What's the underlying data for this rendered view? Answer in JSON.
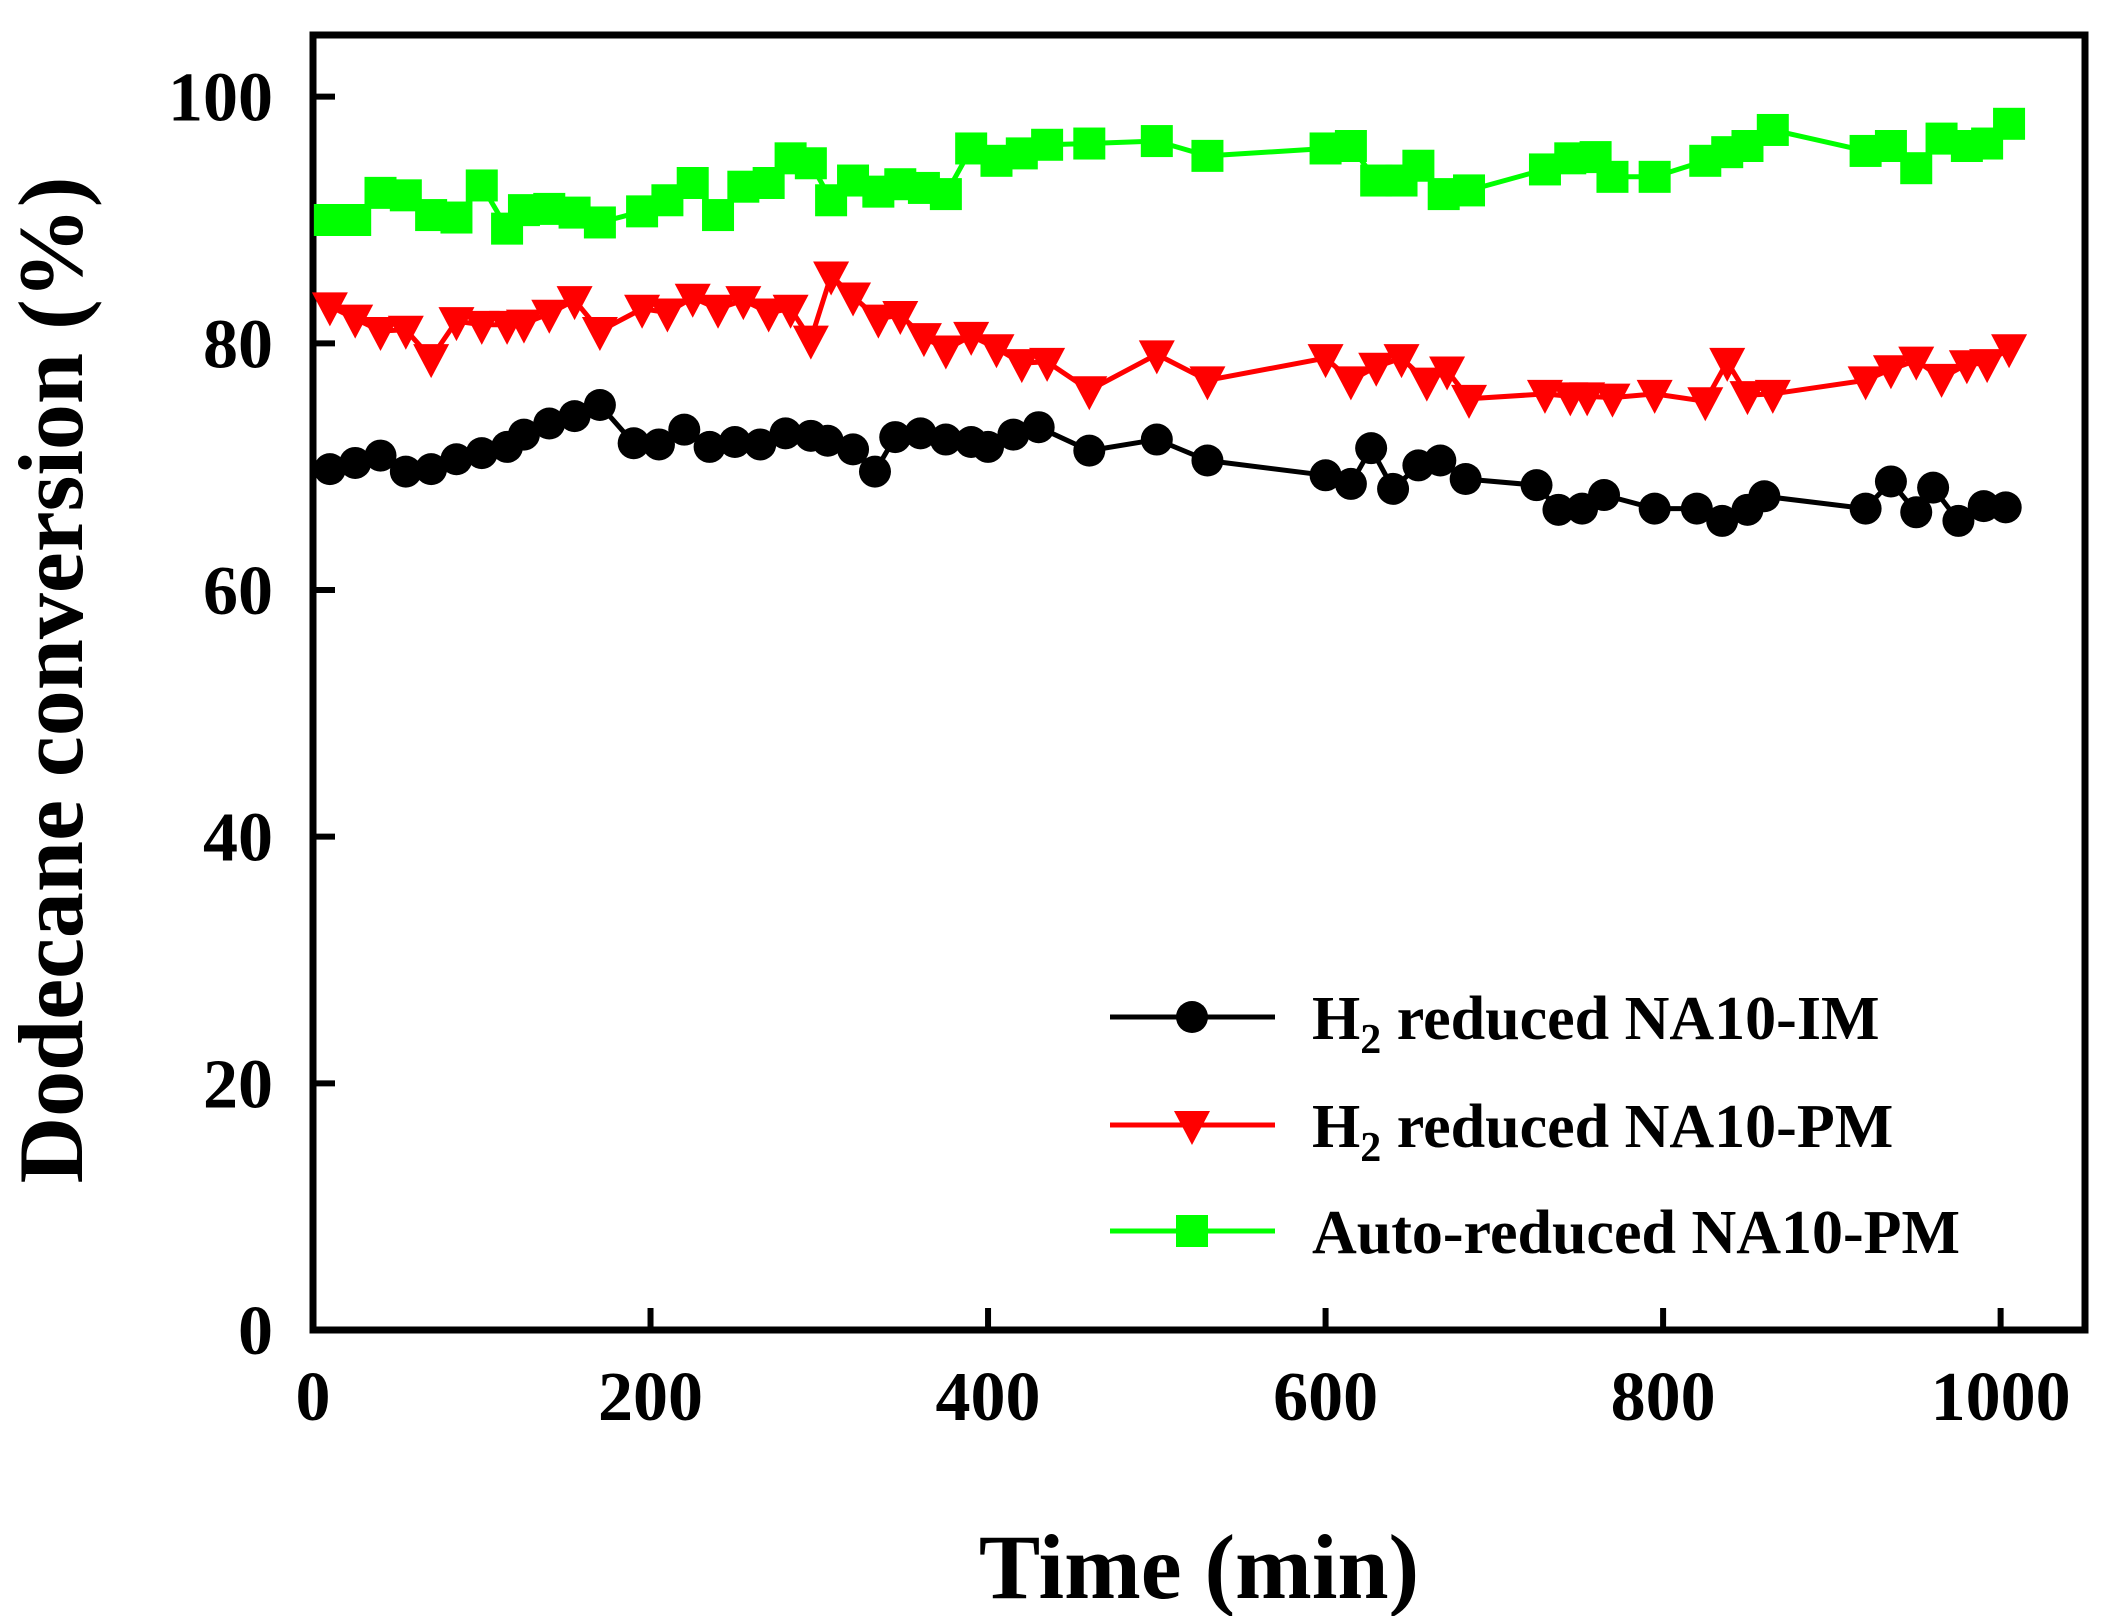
{
  "chart_data": {
    "type": "line",
    "title": "",
    "xlabel": "Time (min)",
    "ylabel": "Dodecane conversion (%)",
    "xlim": [
      0,
      1050
    ],
    "ylim": [
      0,
      105
    ],
    "xticks": [
      0,
      200,
      400,
      600,
      800,
      1000
    ],
    "yticks": [
      0,
      20,
      40,
      60,
      80,
      100
    ],
    "grid": false,
    "legend_position": "bottom-right",
    "series": [
      {
        "name": "H2 reduced NA10-IM",
        "legend_main": "H",
        "legend_sub": "2",
        "legend_rest": " reduced NA10-IM",
        "color": "#000000",
        "marker": "circle",
        "x": [
          10,
          25,
          40,
          55,
          70,
          85,
          100,
          115,
          125,
          140,
          155,
          170,
          190,
          205,
          220,
          235,
          250,
          265,
          280,
          295,
          305,
          320,
          333,
          345,
          360,
          375,
          390,
          400,
          415,
          430,
          460,
          500,
          530,
          600,
          615,
          627,
          640,
          655,
          668,
          683,
          725,
          738,
          752,
          765,
          795,
          820,
          835,
          850,
          860,
          920,
          935,
          950,
          960,
          975,
          990,
          1003
        ],
        "y": [
          69.8,
          70.3,
          70.9,
          69.6,
          69.8,
          70.6,
          71.1,
          71.6,
          72.6,
          73.5,
          74.1,
          75.0,
          71.9,
          71.8,
          73.0,
          71.6,
          72.0,
          71.8,
          72.7,
          72.5,
          72.1,
          71.4,
          69.6,
          72.4,
          72.7,
          72.2,
          72.0,
          71.6,
          72.6,
          73.2,
          71.3,
          72.2,
          70.5,
          69.3,
          68.6,
          71.5,
          68.2,
          70.1,
          70.5,
          69.0,
          68.5,
          66.5,
          66.6,
          67.7,
          66.6,
          66.6,
          65.6,
          66.5,
          67.6,
          66.6,
          68.8,
          66.3,
          68.3,
          65.6,
          66.8,
          66.7
        ]
      },
      {
        "name": "H2 reduced NA10-PM",
        "legend_main": "H",
        "legend_sub": "2",
        "legend_rest": " reduced NA10-PM",
        "color": "#ff0000",
        "marker": "triangle-down",
        "x": [
          10,
          25,
          40,
          55,
          70,
          85,
          100,
          115,
          125,
          140,
          155,
          170,
          195,
          210,
          225,
          240,
          255,
          270,
          283,
          295,
          307,
          320,
          335,
          348,
          362,
          375,
          390,
          405,
          420,
          435,
          460,
          500,
          530,
          600,
          615,
          630,
          645,
          660,
          672,
          685,
          730,
          745,
          755,
          770,
          795,
          825,
          838,
          850,
          865,
          920,
          935,
          950,
          965,
          980,
          992,
          1005
        ],
        "y": [
          83.0,
          82.0,
          81.0,
          81.1,
          78.8,
          81.8,
          81.5,
          81.5,
          81.6,
          82.4,
          83.5,
          81.0,
          82.8,
          82.5,
          83.7,
          82.8,
          83.5,
          82.5,
          82.8,
          80.3,
          85.5,
          83.8,
          82.0,
          82.3,
          80.5,
          79.5,
          80.6,
          79.6,
          78.4,
          78.5,
          76.2,
          79.1,
          77.0,
          78.8,
          77.0,
          78.1,
          78.8,
          76.9,
          77.8,
          75.5,
          75.9,
          75.7,
          75.7,
          75.6,
          75.9,
          75.3,
          78.5,
          75.8,
          75.9,
          77.0,
          77.9,
          78.6,
          77.2,
          78.3,
          78.4,
          79.6
        ]
      },
      {
        "name": "Auto-reduced NA10-PM",
        "legend_main": "Auto-reduced NA10-PM",
        "legend_sub": "",
        "legend_rest": "",
        "color": "#00ff00",
        "marker": "square",
        "x": [
          10,
          25,
          40,
          55,
          70,
          85,
          100,
          115,
          125,
          140,
          155,
          170,
          195,
          210,
          225,
          240,
          255,
          270,
          283,
          295,
          307,
          320,
          335,
          348,
          362,
          375,
          390,
          405,
          420,
          435,
          460,
          500,
          530,
          600,
          615,
          630,
          645,
          655,
          670,
          685,
          730,
          745,
          760,
          770,
          795,
          825,
          838,
          850,
          865,
          920,
          935,
          950,
          965,
          980,
          992,
          1005
        ],
        "y": [
          90.0,
          90.0,
          92.2,
          92.0,
          90.4,
          90.2,
          92.8,
          89.3,
          90.8,
          90.9,
          90.6,
          89.8,
          90.7,
          91.6,
          93.0,
          90.4,
          92.7,
          93.0,
          95.0,
          94.6,
          91.6,
          93.2,
          92.3,
          92.9,
          92.6,
          92.1,
          95.8,
          94.8,
          95.4,
          96.1,
          96.2,
          96.4,
          95.2,
          95.8,
          96.0,
          93.2,
          93.2,
          94.4,
          92.1,
          92.4,
          94.1,
          95.0,
          95.1,
          93.5,
          93.5,
          94.8,
          95.5,
          96.0,
          97.3,
          95.6,
          96.0,
          94.2,
          96.6,
          96.0,
          96.2,
          97.8
        ]
      }
    ]
  }
}
